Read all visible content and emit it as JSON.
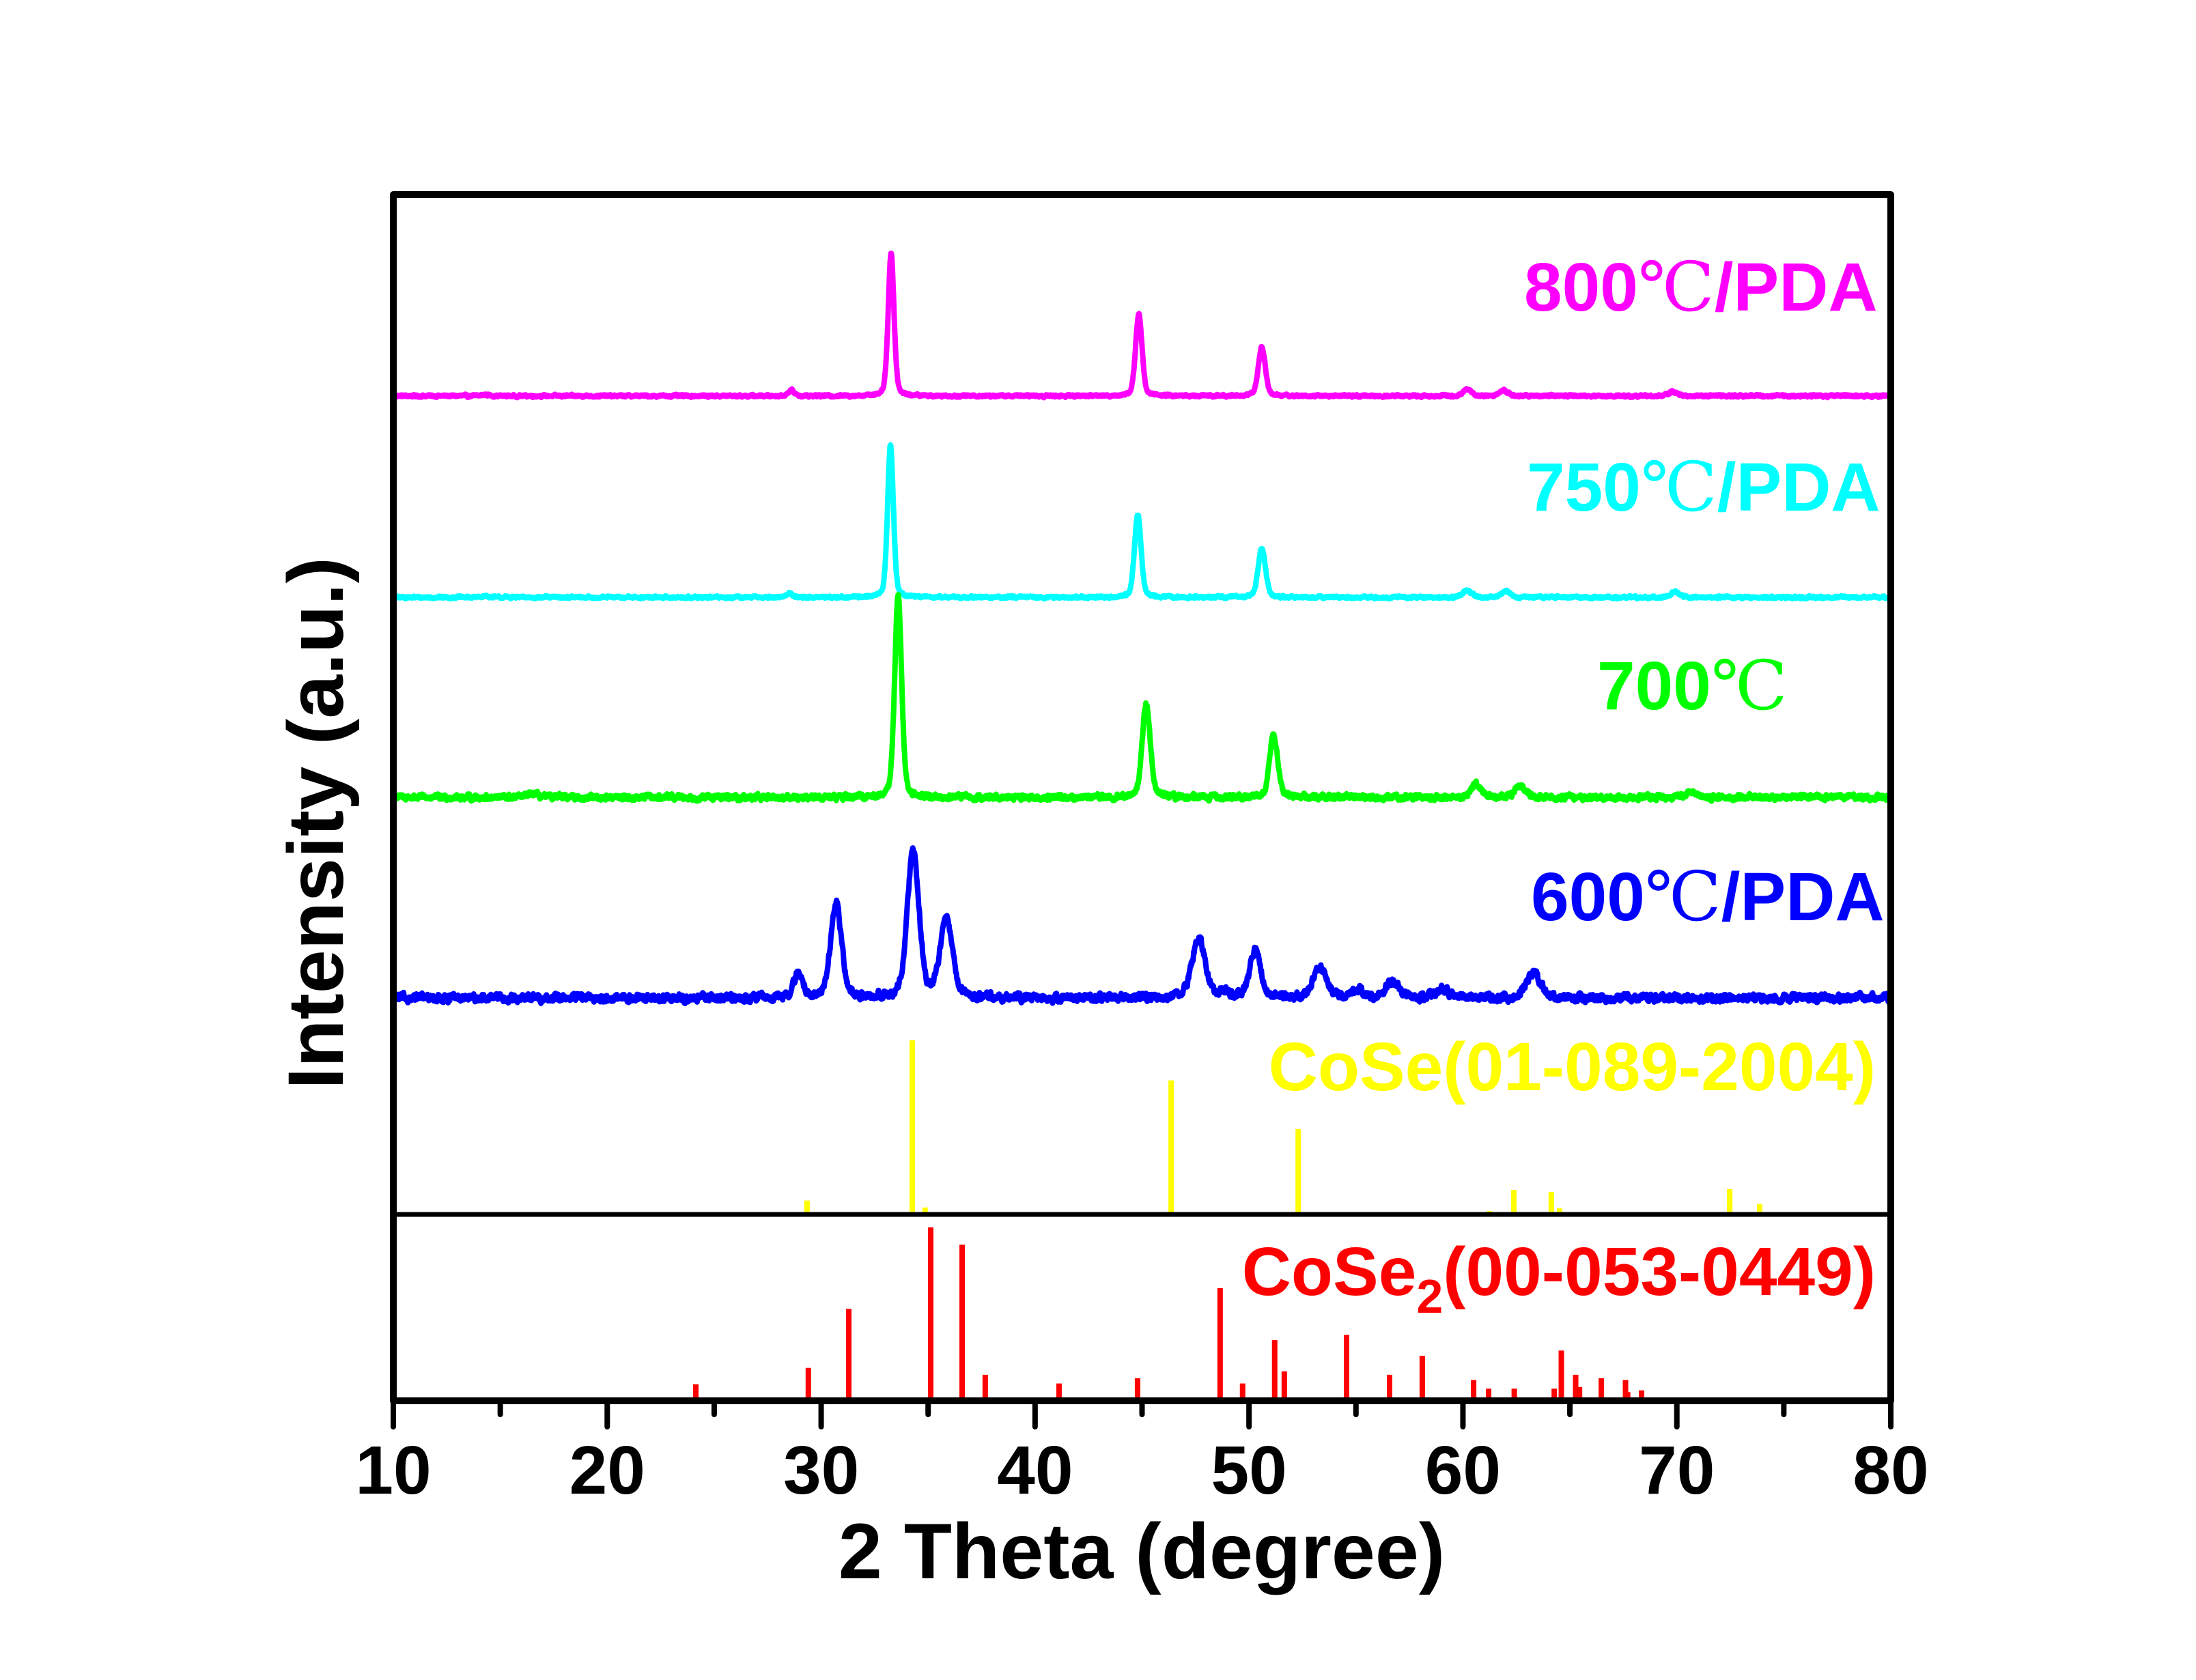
{
  "chart_data": {
    "type": "line",
    "title": "",
    "xlabel": "2 Theta (degree)",
    "ylabel": "Intensity (a.u.)",
    "xlim": [
      10,
      80
    ],
    "ylim": [
      0,
      1767
    ],
    "xticks": [
      10,
      20,
      30,
      40,
      50,
      60,
      70,
      80
    ],
    "xtick_labels": [
      "10",
      "20",
      "30",
      "40",
      "50",
      "60",
      "70",
      "80"
    ],
    "minor_xticks": [
      15,
      25,
      35,
      45,
      55,
      65,
      75
    ],
    "grid": false,
    "series": [
      {
        "name": "800℃/PDA",
        "label_parts": [
          "800",
          "℃",
          "/PDA"
        ],
        "color": "#ff00ff",
        "offset": 1472,
        "noise": 3,
        "peaks": [
          [
            14.3,
            2,
            0.4
          ],
          [
            28.6,
            8,
            0.35
          ],
          [
            33.27,
            209,
            0.32
          ],
          [
            44.85,
            121,
            0.35
          ],
          [
            50.6,
            72,
            0.38
          ],
          [
            60.2,
            10,
            0.45
          ],
          [
            61.9,
            8,
            0.45
          ],
          [
            69.8,
            6,
            0.45
          ]
        ]
      },
      {
        "name": "750℃/PDA",
        "label_parts": [
          "750",
          "℃",
          "/PDA"
        ],
        "color": "#00ffff",
        "offset": 1177,
        "noise": 3,
        "peaks": [
          [
            14.3,
            2,
            0.4
          ],
          [
            28.5,
            6,
            0.35
          ],
          [
            33.24,
            223,
            0.32
          ],
          [
            44.8,
            121,
            0.36
          ],
          [
            50.6,
            72,
            0.4
          ],
          [
            60.2,
            10,
            0.45
          ],
          [
            62.0,
            10,
            0.45
          ],
          [
            69.9,
            8,
            0.45
          ]
        ]
      },
      {
        "name": "700℃",
        "label_parts": [
          "700",
          "℃",
          ""
        ],
        "color": "#00ff00",
        "offset": 884,
        "noise": 7,
        "peaks": [
          [
            16.5,
            5,
            0.6
          ],
          [
            33.6,
            297,
            0.38
          ],
          [
            45.2,
            137,
            0.45
          ],
          [
            51.15,
            90,
            0.45
          ],
          [
            60.6,
            20,
            0.55
          ],
          [
            62.7,
            18,
            0.55
          ],
          [
            70.7,
            8,
            0.5
          ]
        ]
      },
      {
        "name": "600℃/PDA",
        "label_parts": [
          "600",
          "℃",
          "/PDA"
        ],
        "color": "#0000ff",
        "offset": 590,
        "noise": 10,
        "peaks": [
          [
            28.93,
            35,
            0.5
          ],
          [
            30.7,
            139,
            0.6
          ],
          [
            34.3,
            214,
            0.65
          ],
          [
            35.85,
            112,
            0.7
          ],
          [
            47.65,
            86,
            0.75
          ],
          [
            48.9,
            8,
            0.5
          ],
          [
            50.3,
            69,
            0.6
          ],
          [
            53.3,
            45,
            0.75
          ],
          [
            55.1,
            15,
            0.6
          ],
          [
            56.7,
            25,
            0.7
          ],
          [
            59.1,
            12,
            0.7
          ],
          [
            63.3,
            36,
            0.8
          ]
        ]
      }
    ],
    "references": [
      {
        "name": "CoSe(01-089-2004)",
        "label_main": "CoSe(01-089-2004)",
        "color": "#ffff00",
        "offset": 273,
        "max_height": 255,
        "x": [
          29.34,
          34.26,
          34.86,
          46.36,
          52.3,
          61.23,
          62.38,
          64.13,
          64.52,
          72.47,
          73.87
        ],
        "rel_intensity": [
          8,
          100,
          4,
          77,
          49,
          2,
          14,
          13,
          3.5,
          14.5,
          6
        ]
      },
      {
        "name": "CoSe2(00-053-0449)",
        "label_main": "CoSe",
        "label_sub": "2",
        "label_rest": "(00-053-0449)",
        "color": "#ff0000",
        "offset": 0,
        "max_height": 254,
        "x": [
          24.14,
          29.4,
          31.29,
          35.12,
          36.59,
          37.67,
          41.12,
          44.79,
          48.65,
          49.7,
          51.2,
          51.65,
          54.56,
          56.57,
          58.1,
          60.5,
          61.2,
          62.4,
          64.27,
          64.6,
          65.27,
          65.45,
          66.47,
          67.6,
          67.7,
          68.35
        ],
        "rel_intensity": [
          9.5,
          19,
          53,
          100,
          90,
          15,
          10,
          13,
          65,
          10,
          35,
          17,
          38,
          15,
          26,
          12,
          7,
          7,
          7,
          29,
          15,
          8,
          13,
          12,
          5,
          6
        ]
      }
    ]
  }
}
